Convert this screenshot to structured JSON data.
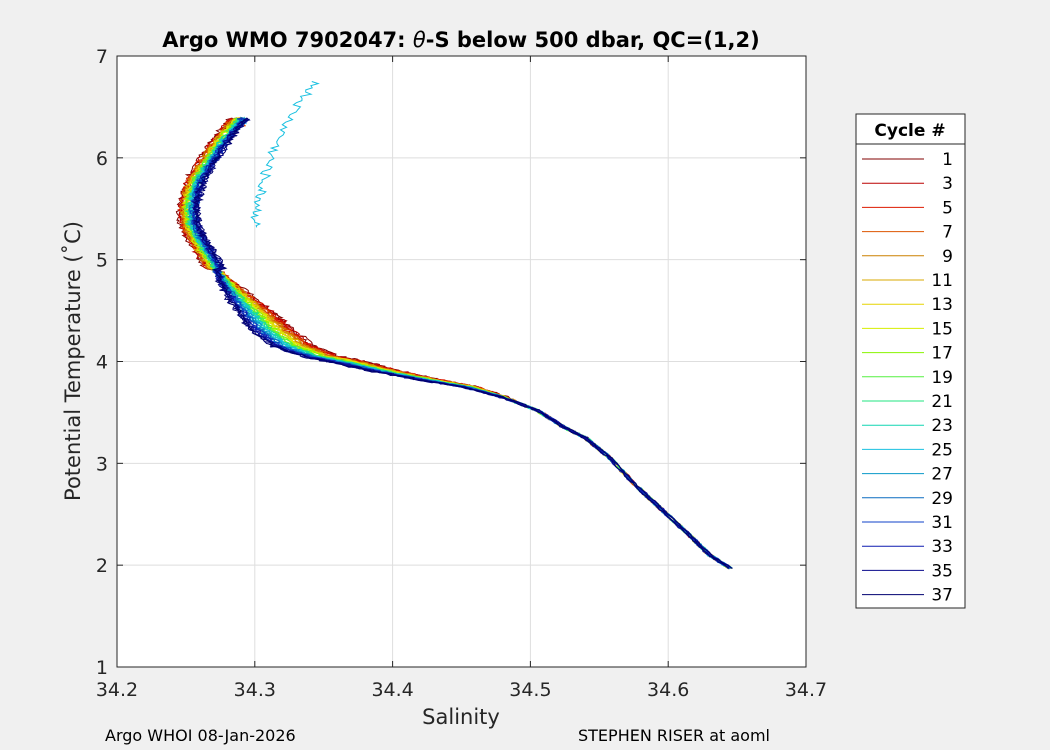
{
  "chart_data": {
    "type": "line",
    "title": "Argo WMO 7902047: θ-S below 500 dbar,  QC=(1,2)",
    "title_parts": {
      "prefix": "Argo WMO 7902047: ",
      "theta": "θ",
      "suffix": "-S below 500 dbar,  QC=(1,2)"
    },
    "xlabel": "Salinity",
    "ylabel": "Potential Temperature (˚C)",
    "xlim": [
      34.2,
      34.7
    ],
    "ylim": [
      1,
      7
    ],
    "xticks": [
      "34.2",
      "34.3",
      "34.4",
      "34.5",
      "34.6",
      "34.7"
    ],
    "yticks": [
      "1",
      "2",
      "3",
      "4",
      "5",
      "6",
      "7"
    ],
    "grid": true,
    "legend": {
      "title": "Cycle #",
      "placement": "right-outside",
      "entries": [
        "1",
        "3",
        "5",
        "7",
        "9",
        "11",
        "13",
        "15",
        "17",
        "19",
        "21",
        "23",
        "25",
        "27",
        "29",
        "31",
        "33",
        "35",
        "37"
      ],
      "colors": [
        "#800000",
        "#bb0000",
        "#dd1a00",
        "#dd5500",
        "#cc8000",
        "#d9a800",
        "#e6d400",
        "#d6ee00",
        "#88f500",
        "#55f040",
        "#22e480",
        "#11d6b2",
        "#18c0e0",
        "#0898c8",
        "#0a6cc0",
        "#0f40c8",
        "#0f1ab0",
        "#0a0a8c",
        "#000070"
      ]
    },
    "profile_base": [
      [
        34.645,
        1.97
      ],
      [
        34.63,
        2.1
      ],
      [
        34.615,
        2.3
      ],
      [
        34.595,
        2.55
      ],
      [
        34.575,
        2.8
      ],
      [
        34.558,
        3.05
      ],
      [
        34.54,
        3.25
      ],
      [
        34.525,
        3.35
      ],
      [
        34.505,
        3.52
      ],
      [
        34.48,
        3.65
      ],
      [
        34.455,
        3.75
      ],
      [
        34.425,
        3.82
      ],
      [
        34.395,
        3.9
      ],
      [
        34.37,
        3.98
      ],
      [
        34.345,
        4.05
      ],
      [
        34.325,
        4.15
      ],
      [
        34.31,
        4.3
      ],
      [
        34.3,
        4.45
      ],
      [
        34.29,
        4.6
      ],
      [
        34.28,
        4.75
      ],
      [
        34.272,
        4.9
      ],
      [
        34.265,
        5.05
      ],
      [
        34.258,
        5.2
      ],
      [
        34.253,
        5.35
      ],
      [
        34.252,
        5.5
      ],
      [
        34.254,
        5.65
      ],
      [
        34.258,
        5.8
      ],
      [
        34.265,
        5.95
      ],
      [
        34.272,
        6.1
      ],
      [
        34.28,
        6.25
      ],
      [
        34.29,
        6.4
      ]
    ],
    "profile_anomaly": {
      "cycle": "25",
      "points": [
        [
          34.345,
          6.75
        ],
        [
          34.33,
          6.5
        ],
        [
          34.318,
          6.2
        ],
        [
          34.31,
          5.95
        ],
        [
          34.305,
          5.7
        ],
        [
          34.302,
          5.5
        ],
        [
          34.3,
          5.3
        ]
      ]
    },
    "footer_left": "Argo WHOI 08-Jan-2026",
    "footer_right": "STEPHEN RISER at aoml"
  }
}
